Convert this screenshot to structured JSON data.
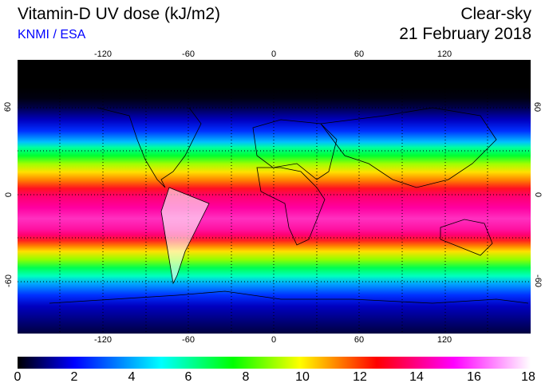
{
  "header": {
    "title": "Vitamin-D UV dose (kJ/m2)",
    "organization": "KNMI / ESA",
    "sky_condition": "Clear-sky",
    "date": "21 February 2018"
  },
  "map": {
    "lon_ticks": [
      "-120",
      "-60",
      "0",
      "60",
      "120"
    ],
    "lat_ticks": [
      "60",
      "0",
      "-60"
    ]
  },
  "colorbar": {
    "labels": [
      "0",
      "2",
      "4",
      "6",
      "8",
      "10",
      "12",
      "14",
      "16",
      "18"
    ],
    "colors": [
      "#000000",
      "#0000ff",
      "#00ffff",
      "#00ff00",
      "#ffff00",
      "#ff0000",
      "#ff00ff",
      "#ffffff"
    ],
    "min": 0,
    "max": 18
  }
}
